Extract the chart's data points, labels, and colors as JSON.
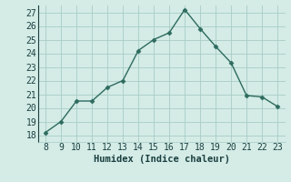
{
  "x": [
    8,
    9,
    10,
    11,
    12,
    13,
    14,
    15,
    16,
    17,
    18,
    19,
    20,
    21,
    22,
    23
  ],
  "y": [
    18.2,
    19.0,
    20.5,
    20.5,
    21.5,
    22.0,
    24.2,
    25.0,
    25.5,
    27.2,
    25.8,
    24.5,
    23.3,
    20.9,
    20.8,
    20.1
  ],
  "xlabel": "Humidex (Indice chaleur)",
  "ylim": [
    17.5,
    27.5
  ],
  "xlim": [
    7.5,
    23.5
  ],
  "yticks": [
    18,
    19,
    20,
    21,
    22,
    23,
    24,
    25,
    26,
    27
  ],
  "xticks": [
    8,
    9,
    10,
    11,
    12,
    13,
    14,
    15,
    16,
    17,
    18,
    19,
    20,
    21,
    22,
    23
  ],
  "line_color": "#2d6b5e",
  "marker_color": "#2d6b5e",
  "bg_color": "#d4ebe6",
  "grid_color": "#a8ccc6",
  "font_color": "#1a4040",
  "tick_fontsize": 7,
  "xlabel_fontsize": 7.5
}
